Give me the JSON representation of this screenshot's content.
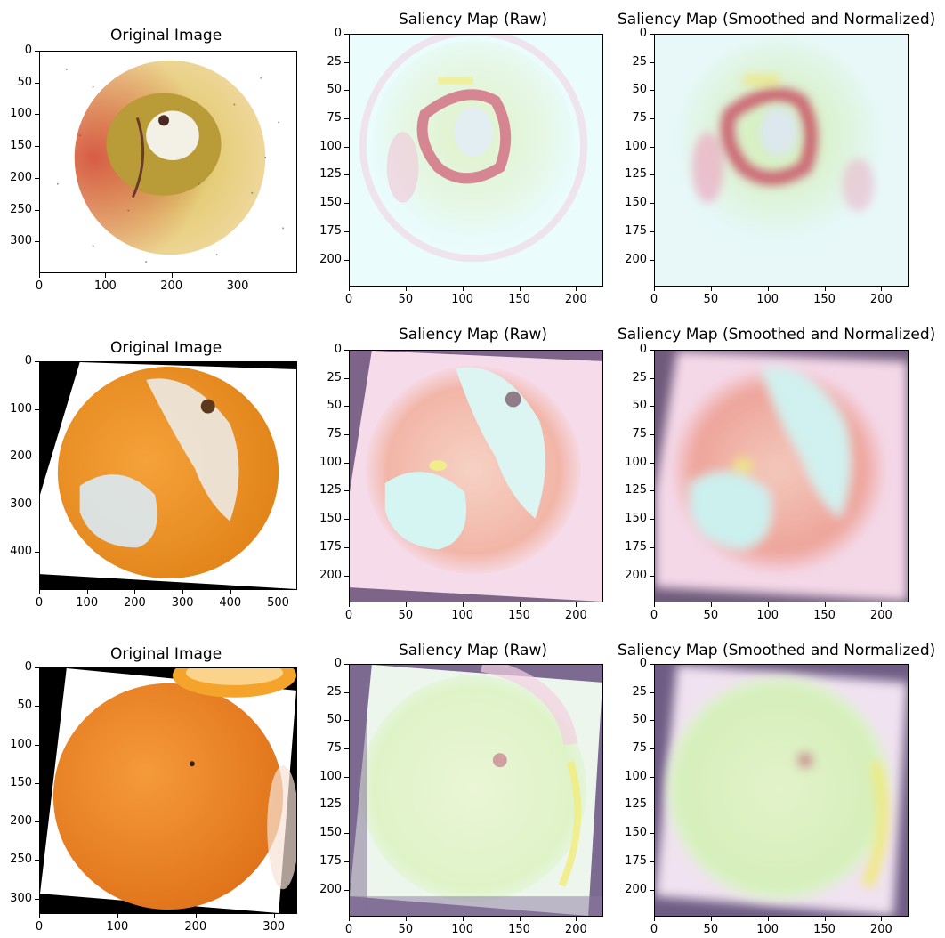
{
  "figure": {
    "rows": [
      {
        "fruit": "apple",
        "panels": [
          {
            "title": "Original Image",
            "x_ticks": [
              "0",
              "100",
              "200",
              "300"
            ],
            "y_ticks": [
              "0",
              "50",
              "100",
              "150",
              "200",
              "250",
              "300"
            ],
            "image": "original-apple"
          },
          {
            "title": "Saliency Map (Raw)",
            "x_ticks": [
              "0",
              "50",
              "100",
              "150",
              "200"
            ],
            "y_ticks": [
              "0",
              "25",
              "50",
              "75",
              "100",
              "125",
              "150",
              "175",
              "200"
            ],
            "image": "saliency-raw-apple"
          },
          {
            "title": "Saliency Map (Smoothed and Normalized)",
            "x_ticks": [
              "0",
              "50",
              "100",
              "150",
              "200"
            ],
            "y_ticks": [
              "0",
              "25",
              "50",
              "75",
              "100",
              "125",
              "150",
              "175",
              "200"
            ],
            "image": "saliency-smooth-apple"
          }
        ]
      },
      {
        "fruit": "moldy-orange",
        "panels": [
          {
            "title": "Original Image",
            "x_ticks": [
              "0",
              "100",
              "200",
              "300",
              "400",
              "500"
            ],
            "y_ticks": [
              "0",
              "100",
              "200",
              "300",
              "400"
            ],
            "image": "original-moldy-orange"
          },
          {
            "title": "Saliency Map (Raw)",
            "x_ticks": [
              "0",
              "50",
              "100",
              "150",
              "200"
            ],
            "y_ticks": [
              "0",
              "25",
              "50",
              "75",
              "100",
              "125",
              "150",
              "175",
              "200"
            ],
            "image": "saliency-raw-moldy-orange"
          },
          {
            "title": "Saliency Map (Smoothed and Normalized)",
            "x_ticks": [
              "0",
              "50",
              "100",
              "150",
              "200"
            ],
            "y_ticks": [
              "0",
              "25",
              "50",
              "75",
              "100",
              "125",
              "150",
              "175",
              "200"
            ],
            "image": "saliency-smooth-moldy-orange"
          }
        ]
      },
      {
        "fruit": "orange",
        "panels": [
          {
            "title": "Original Image",
            "x_ticks": [
              "0",
              "100",
              "200",
              "300"
            ],
            "y_ticks": [
              "0",
              "50",
              "100",
              "150",
              "200",
              "250",
              "300"
            ],
            "image": "original-orange"
          },
          {
            "title": "Saliency Map (Raw)",
            "x_ticks": [
              "0",
              "50",
              "100",
              "150",
              "200"
            ],
            "y_ticks": [
              "0",
              "25",
              "50",
              "75",
              "100",
              "125",
              "150",
              "175",
              "200"
            ],
            "image": "saliency-raw-orange"
          },
          {
            "title": "Saliency Map (Smoothed and Normalized)",
            "x_ticks": [
              "0",
              "50",
              "100",
              "150",
              "200"
            ],
            "y_ticks": [
              "0",
              "25",
              "50",
              "75",
              "100",
              "125",
              "150",
              "175",
              "200"
            ],
            "image": "saliency-smooth-orange"
          }
        ]
      }
    ]
  },
  "colors": {
    "apple_yellow": "#e3c06a",
    "apple_red": "#d45a40",
    "orange": "#f0962e",
    "mold": "#e8eef0",
    "saliency_cyan": "#d6f6f5",
    "saliency_pink": "#f4c9d6",
    "saliency_green": "#d8f5c2",
    "saliency_purple": "#7a5a86",
    "saliency_red": "#c8475e"
  }
}
